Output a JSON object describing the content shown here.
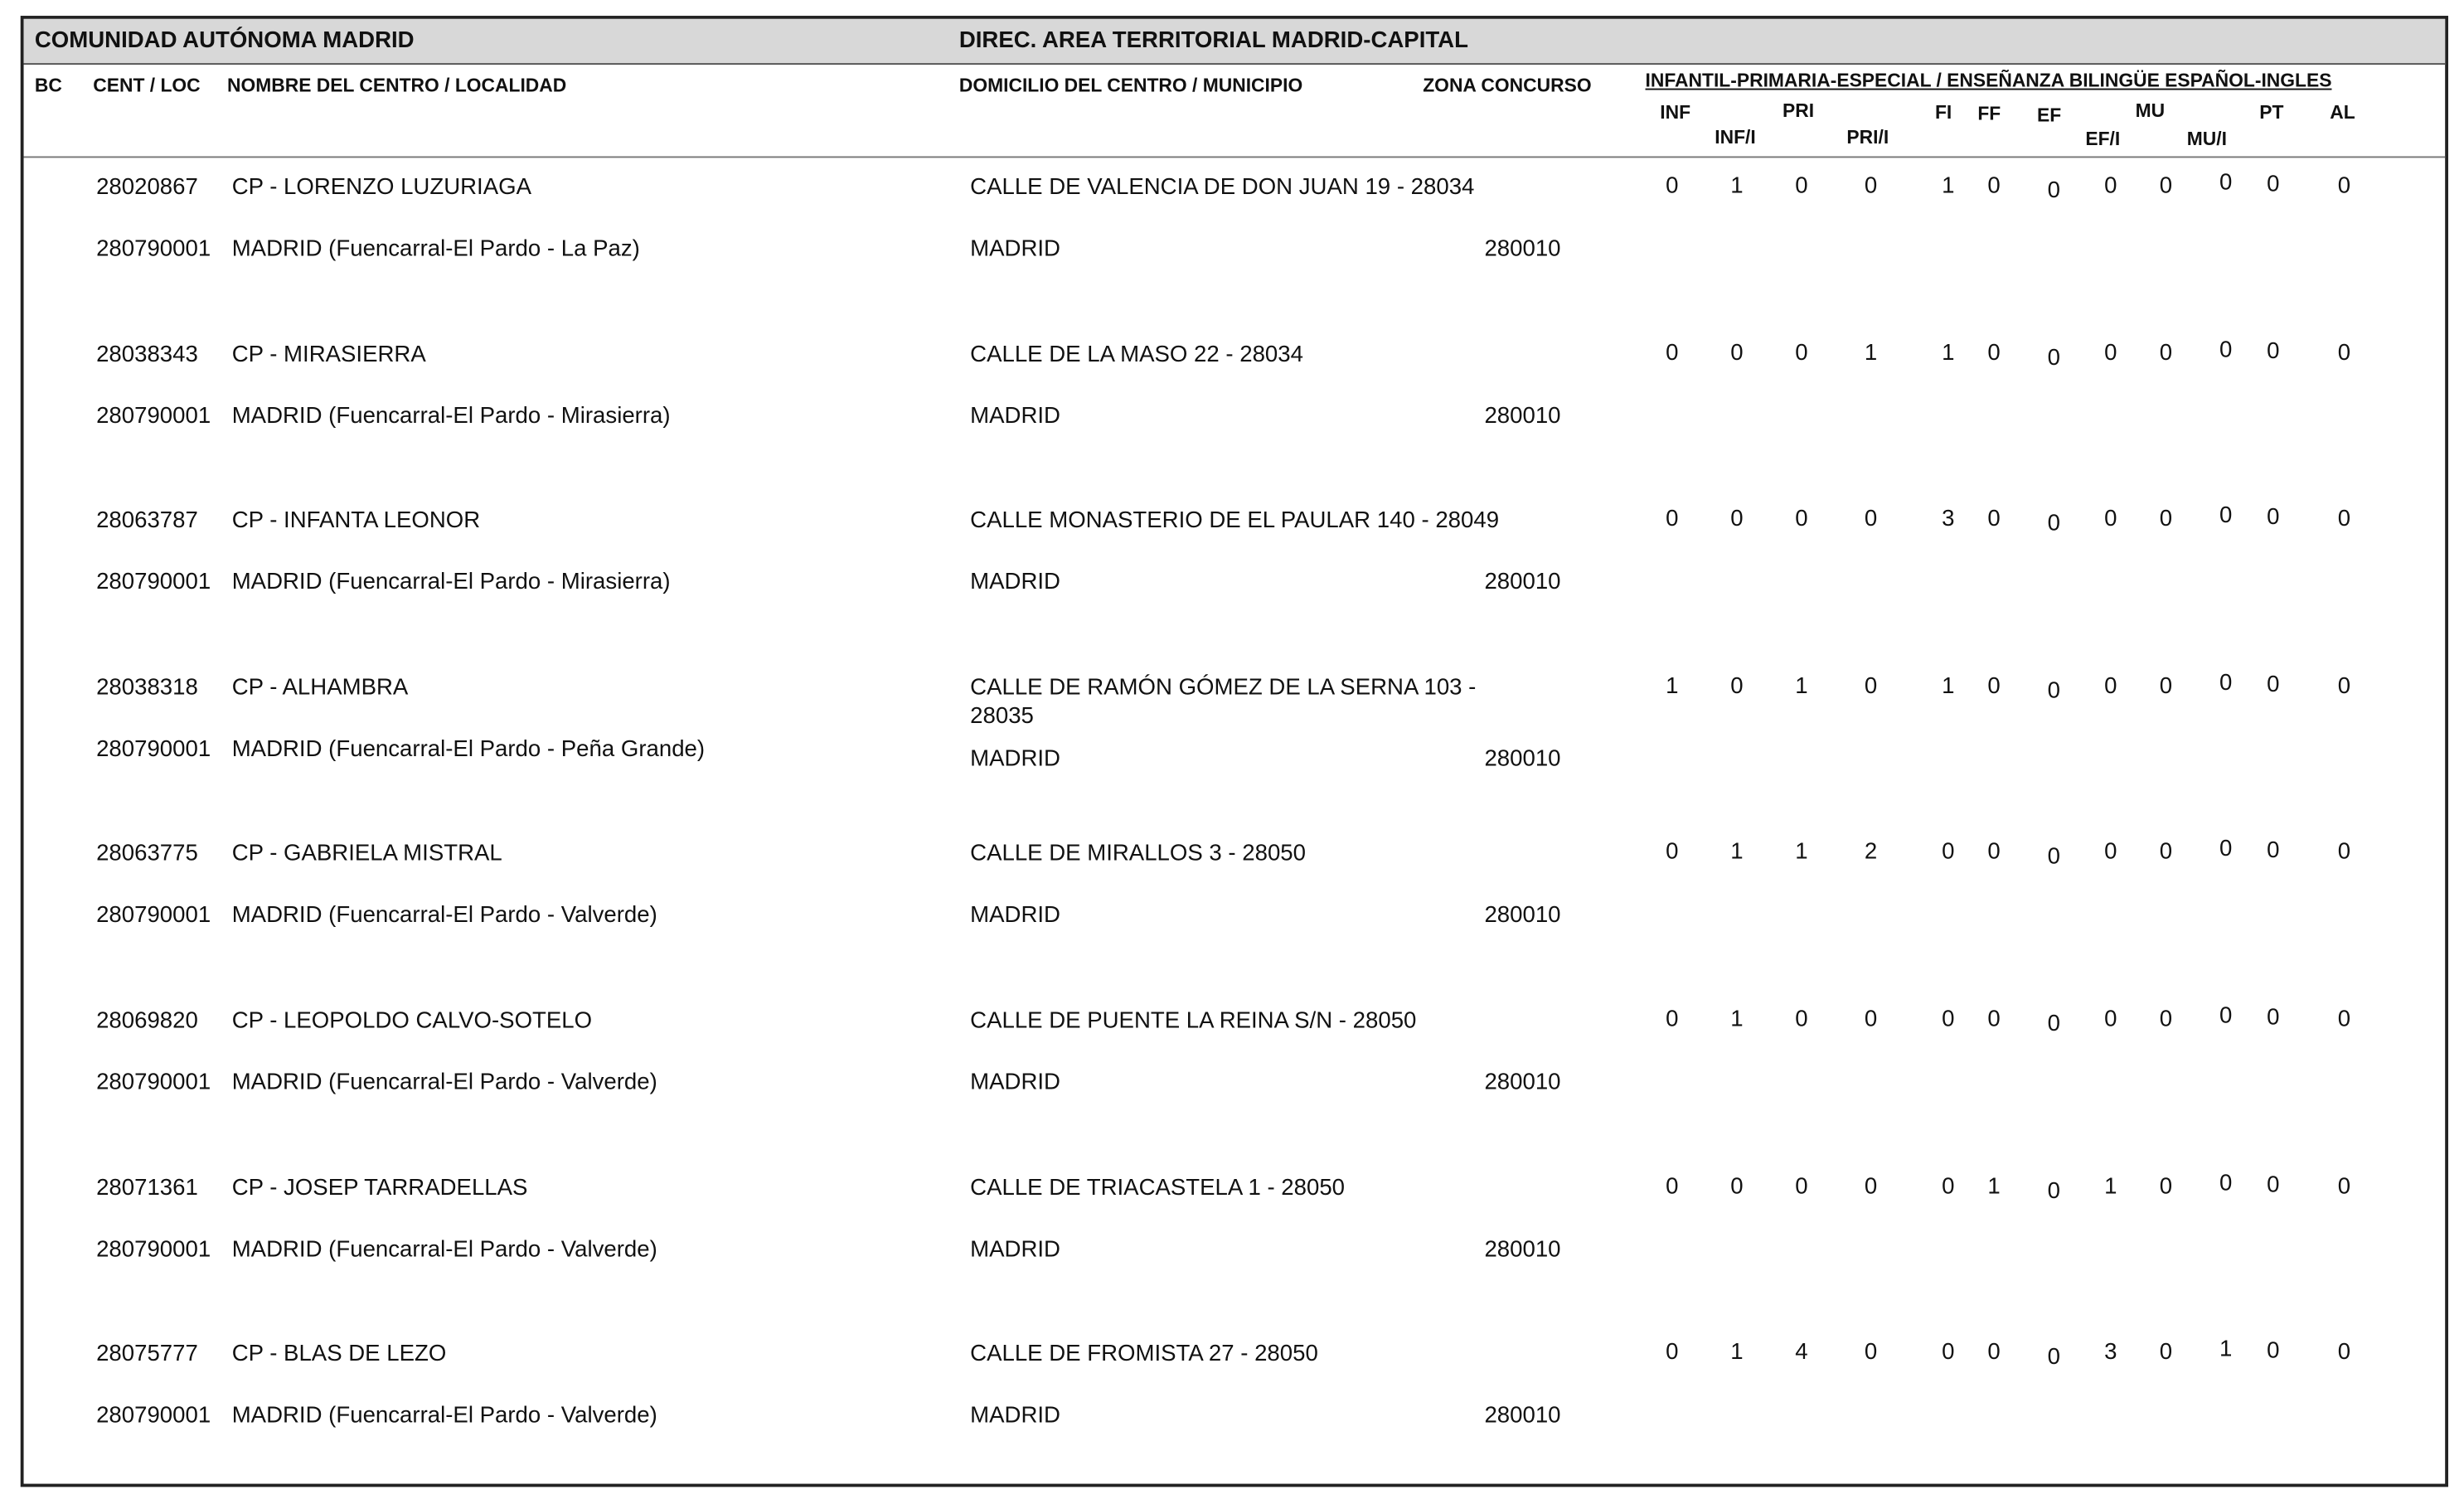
{
  "header": {
    "left": "COMUNIDAD AUTÓNOMA MADRID",
    "right": "DIREC.  AREA TERRITORIAL MADRID-CAPITAL"
  },
  "columns": {
    "bc": "BC",
    "cent": "CENT / LOC",
    "nombre": "NOMBRE DEL CENTRO / LOCALIDAD",
    "domicilio": "DOMICILIO DEL CENTRO / MUNICIPIO",
    "zona": "ZONA CONCURSO",
    "group": "INFANTIL-PRIMARIA-ESPECIAL / ENSEÑANZA BILINGÜE ESPAÑOL-INGLES",
    "specialties": [
      "INF",
      "INF/I",
      "PRI",
      "PRI/I",
      "FI",
      "FF",
      "EF",
      "EF/I",
      "MU",
      "MU/I",
      "PT",
      "AL"
    ]
  },
  "rows": [
    {
      "code": "28020867",
      "name": "CP - LORENZO LUZURIAGA",
      "address": "CALLE DE VALENCIA DE DON JUAN 19 - 28034",
      "loc_code": "280790001",
      "locality": "MADRID (Fuencarral-El Pardo - La Paz)",
      "municipio": "MADRID",
      "zona": "280010",
      "values": [
        0,
        1,
        0,
        0,
        1,
        0,
        0,
        0,
        0,
        0,
        0,
        0
      ]
    },
    {
      "code": "28038343",
      "name": "CP - MIRASIERRA",
      "address": "CALLE DE LA MASO 22 - 28034",
      "loc_code": "280790001",
      "locality": "MADRID (Fuencarral-El Pardo - Mirasierra)",
      "municipio": "MADRID",
      "zona": "280010",
      "values": [
        0,
        0,
        0,
        1,
        1,
        0,
        0,
        0,
        0,
        0,
        0,
        0
      ]
    },
    {
      "code": "28063787",
      "name": "CP - INFANTA LEONOR",
      "address": "CALLE MONASTERIO DE EL PAULAR 140 - 28049",
      "loc_code": "280790001",
      "locality": "MADRID (Fuencarral-El Pardo - Mirasierra)",
      "municipio": "MADRID",
      "zona": "280010",
      "values": [
        0,
        0,
        0,
        0,
        3,
        0,
        0,
        0,
        0,
        0,
        0,
        0
      ]
    },
    {
      "code": "28038318",
      "name": "CP - ALHAMBRA",
      "address": "CALLE DE RAMÓN GÓMEZ DE LA SERNA 103 - 28035",
      "loc_code": "280790001",
      "locality": "MADRID (Fuencarral-El Pardo - Peña Grande)",
      "municipio": "MADRID",
      "zona": "280010",
      "values": [
        1,
        0,
        1,
        0,
        1,
        0,
        0,
        0,
        0,
        0,
        0,
        0
      ]
    },
    {
      "code": "28063775",
      "name": "CP - GABRIELA MISTRAL",
      "address": "CALLE DE MIRALLOS 3 - 28050",
      "loc_code": "280790001",
      "locality": "MADRID (Fuencarral-El Pardo - Valverde)",
      "municipio": "MADRID",
      "zona": "280010",
      "values": [
        0,
        1,
        1,
        2,
        0,
        0,
        0,
        0,
        0,
        0,
        0,
        0
      ]
    },
    {
      "code": "28069820",
      "name": "CP - LEOPOLDO CALVO-SOTELO",
      "address": "CALLE DE PUENTE LA REINA S/N - 28050",
      "loc_code": "280790001",
      "locality": "MADRID (Fuencarral-El Pardo - Valverde)",
      "municipio": "MADRID",
      "zona": "280010",
      "values": [
        0,
        1,
        0,
        0,
        0,
        0,
        0,
        0,
        0,
        0,
        0,
        0
      ]
    },
    {
      "code": "28071361",
      "name": "CP - JOSEP TARRADELLAS",
      "address": "CALLE DE TRIACASTELA 1 - 28050",
      "loc_code": "280790001",
      "locality": "MADRID (Fuencarral-El Pardo - Valverde)",
      "municipio": "MADRID",
      "zona": "280010",
      "values": [
        0,
        0,
        0,
        0,
        0,
        1,
        0,
        1,
        0,
        0,
        0,
        0
      ]
    },
    {
      "code": "28075777",
      "name": "CP - BLAS DE LEZO",
      "address": "CALLE DE FROMISTA 27 - 28050",
      "loc_code": "280790001",
      "locality": "MADRID (Fuencarral-El Pardo - Valverde)",
      "municipio": "MADRID",
      "zona": "280010",
      "values": [
        0,
        1,
        4,
        0,
        0,
        0,
        0,
        3,
        0,
        1,
        0,
        0
      ]
    }
  ]
}
